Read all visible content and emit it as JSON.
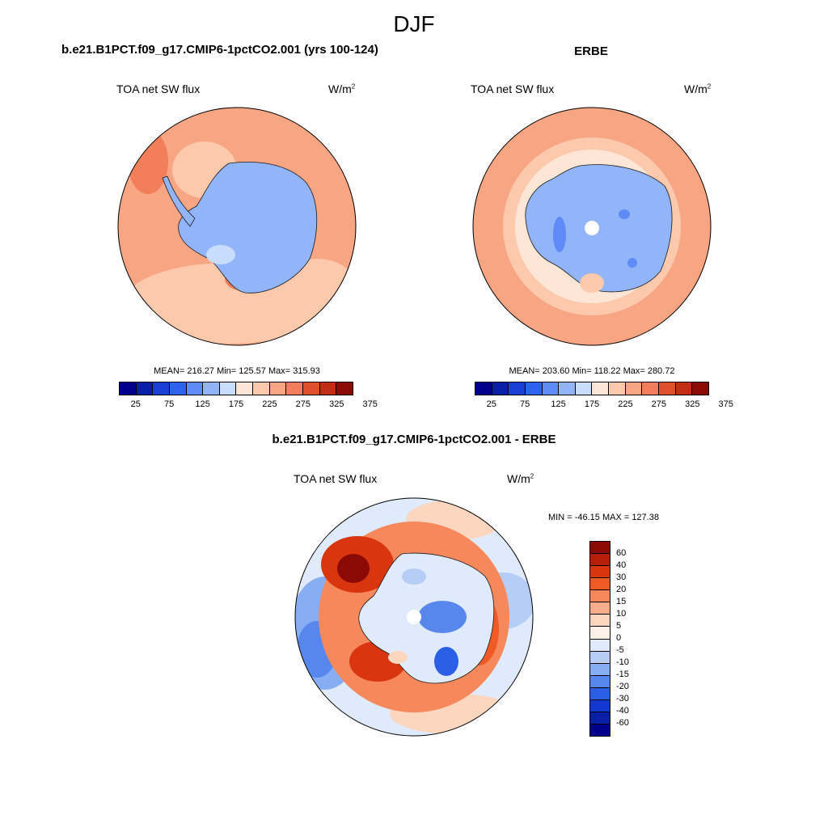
{
  "season": "DJF",
  "panels": {
    "model": {
      "title": "b.e21.B1PCT.f09_g17.CMIP6-1pctCO2.001 (yrs 100-124)",
      "variable": "TOA net SW flux",
      "units": "W/m",
      "units_sup": "2",
      "stats": "MEAN= 216.27  Min= 125.57  Max= 315.93"
    },
    "obs": {
      "title": "ERBE",
      "variable": "TOA net SW flux",
      "units": "W/m",
      "units_sup": "2",
      "stats": "MEAN= 203.60  Min= 118.22  Max= 280.72"
    },
    "diff": {
      "title": "b.e21.B1PCT.f09_g17.CMIP6-1pctCO2.001 - ERBE",
      "variable": "TOA net SW flux",
      "units": "W/m",
      "units_sup": "2",
      "stats": "MIN = -46.15 MAX = 127.38"
    }
  },
  "colorbars": {
    "abs_colors": [
      "#00008c",
      "#0a1fa8",
      "#1a3fd6",
      "#2e62f0",
      "#5e8bf5",
      "#92b4f9",
      "#c8dcfb",
      "#fde6d6",
      "#fcc9ad",
      "#f8a584",
      "#f27e5a",
      "#e0502d",
      "#c22d14",
      "#8c0a05"
    ],
    "abs_ticks": [
      "25",
      "75",
      "125",
      "175",
      "225",
      "275",
      "325",
      "375"
    ],
    "diff_colors": [
      "#8c0a05",
      "#b81f0a",
      "#d9360f",
      "#f05a24",
      "#f7885c",
      "#fbad8c",
      "#fdd6c0",
      "#fdf0e6",
      "#dfeafc",
      "#b5cdf7",
      "#87aef2",
      "#5787ec",
      "#2b5fe6",
      "#1238d1",
      "#0a1fa8",
      "#00008c"
    ],
    "diff_ticks": [
      "60",
      "40",
      "30",
      "20",
      "15",
      "10",
      "5",
      "0",
      "-5",
      "-10",
      "-15",
      "-20",
      "-30",
      "-40",
      "-60"
    ]
  }
}
